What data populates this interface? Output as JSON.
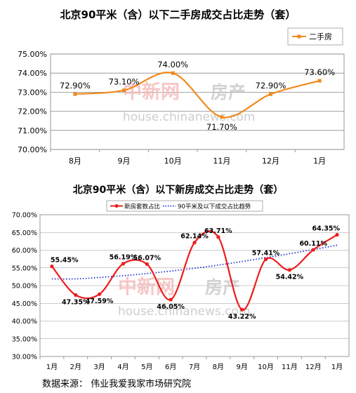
{
  "charts": [
    {
      "title": "北京90平米（含）以下二手房成交占比走势（套）"
    },
    {
      "title": "北京90平米（含）以下新房成交占比走势（套）"
    }
  ],
  "source_note": "数据来源： 伟业我爱我家市场研究院",
  "watermark": {
    "logo_text": "中新网",
    "logo_text2": "房产",
    "url": "house.chinanews.com"
  },
  "chart_data": [
    {
      "type": "line",
      "title": "北京90平米（含）以下二手房成交占比走势（套）",
      "categories": [
        "8月",
        "9月",
        "10月",
        "11月",
        "12月",
        "1月"
      ],
      "series": [
        {
          "name": "二手房",
          "values": [
            72.9,
            73.1,
            74.0,
            71.7,
            72.9,
            73.6
          ],
          "labels": [
            "72.90%",
            "73.10%",
            "74.00%",
            "71.70%",
            "72.90%",
            "73.60%"
          ],
          "color": "#f28a1e"
        }
      ],
      "ylim": [
        70,
        75
      ],
      "yticks": [
        "70.00%",
        "71.00%",
        "72.00%",
        "73.00%",
        "74.00%",
        "75.00%"
      ],
      "grid": true,
      "legend": "top-right"
    },
    {
      "type": "line",
      "title": "北京90平米（含）以下新房成交占比走势（套）",
      "categories": [
        "1月",
        "2月",
        "3月",
        "4月",
        "5月",
        "6月",
        "7月",
        "8月",
        "9月",
        "10月",
        "11月",
        "12月",
        "1月"
      ],
      "series": [
        {
          "name": "新房套数占比",
          "values": [
            55.45,
            47.35,
            47.59,
            56.19,
            56.07,
            46.05,
            62.14,
            63.71,
            43.22,
            57.41,
            54.42,
            60.11,
            64.35
          ],
          "labels": [
            "55.45%",
            "47.35%",
            "47.59%",
            "56.19%",
            "56.07%",
            "46.05%",
            "62.14%",
            "63.71%",
            "43.22%",
            "57.41%",
            "54.42%",
            "60.11%",
            "64.35%"
          ],
          "color": "#ee1c1c"
        },
        {
          "name": "90平米及以下成交占比趋势",
          "style": "dotted",
          "color": "#2233cc",
          "values": [
            51.9,
            51.9,
            52.3,
            52.8,
            53.4,
            54.1,
            54.9,
            55.8,
            56.8,
            57.9,
            59.0,
            60.2,
            61.4
          ]
        }
      ],
      "ylim": [
        30,
        70
      ],
      "yticks": [
        "30.00%",
        "35.00%",
        "40.00%",
        "45.00%",
        "50.00%",
        "55.00%",
        "60.00%",
        "65.00%",
        "70.00%"
      ],
      "grid": true,
      "legend": "top"
    }
  ]
}
